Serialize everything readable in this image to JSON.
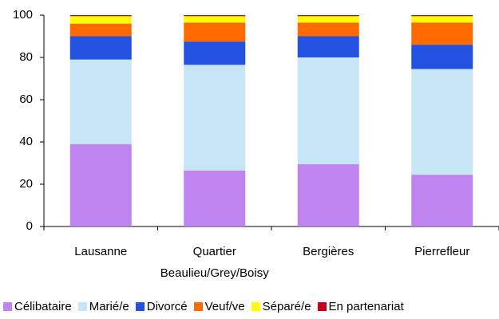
{
  "chart_data": {
    "type": "stacked_bar",
    "categories": [
      "Lausanne",
      "Quartier Beaulieu/Grey/Boisy",
      "Bergières",
      "Pierrefleur"
    ],
    "series": [
      {
        "name": "Célibataire",
        "color": "#c084f0",
        "values": [
          39,
          26.5,
          29.5,
          24.5
        ]
      },
      {
        "name": "Marié/e",
        "color": "#c6e6f8",
        "values": [
          40,
          50,
          50.5,
          50
        ]
      },
      {
        "name": "Divorcé",
        "color": "#2352e0",
        "values": [
          11,
          11,
          10,
          11.5
        ]
      },
      {
        "name": "Veuf/ve",
        "color": "#ff6a00",
        "values": [
          6,
          9,
          6.5,
          10.5
        ]
      },
      {
        "name": "Séparé/e",
        "color": "#ffff00",
        "values": [
          3.5,
          3,
          3,
          3
        ]
      },
      {
        "name": "En partenariat",
        "color": "#c0001e",
        "values": [
          0.5,
          0.5,
          0.5,
          0.5
        ]
      }
    ],
    "ylim": [
      0,
      100
    ],
    "yticks": [
      0,
      20,
      40,
      60,
      80,
      100
    ],
    "grid": false,
    "legend": "bottom"
  }
}
